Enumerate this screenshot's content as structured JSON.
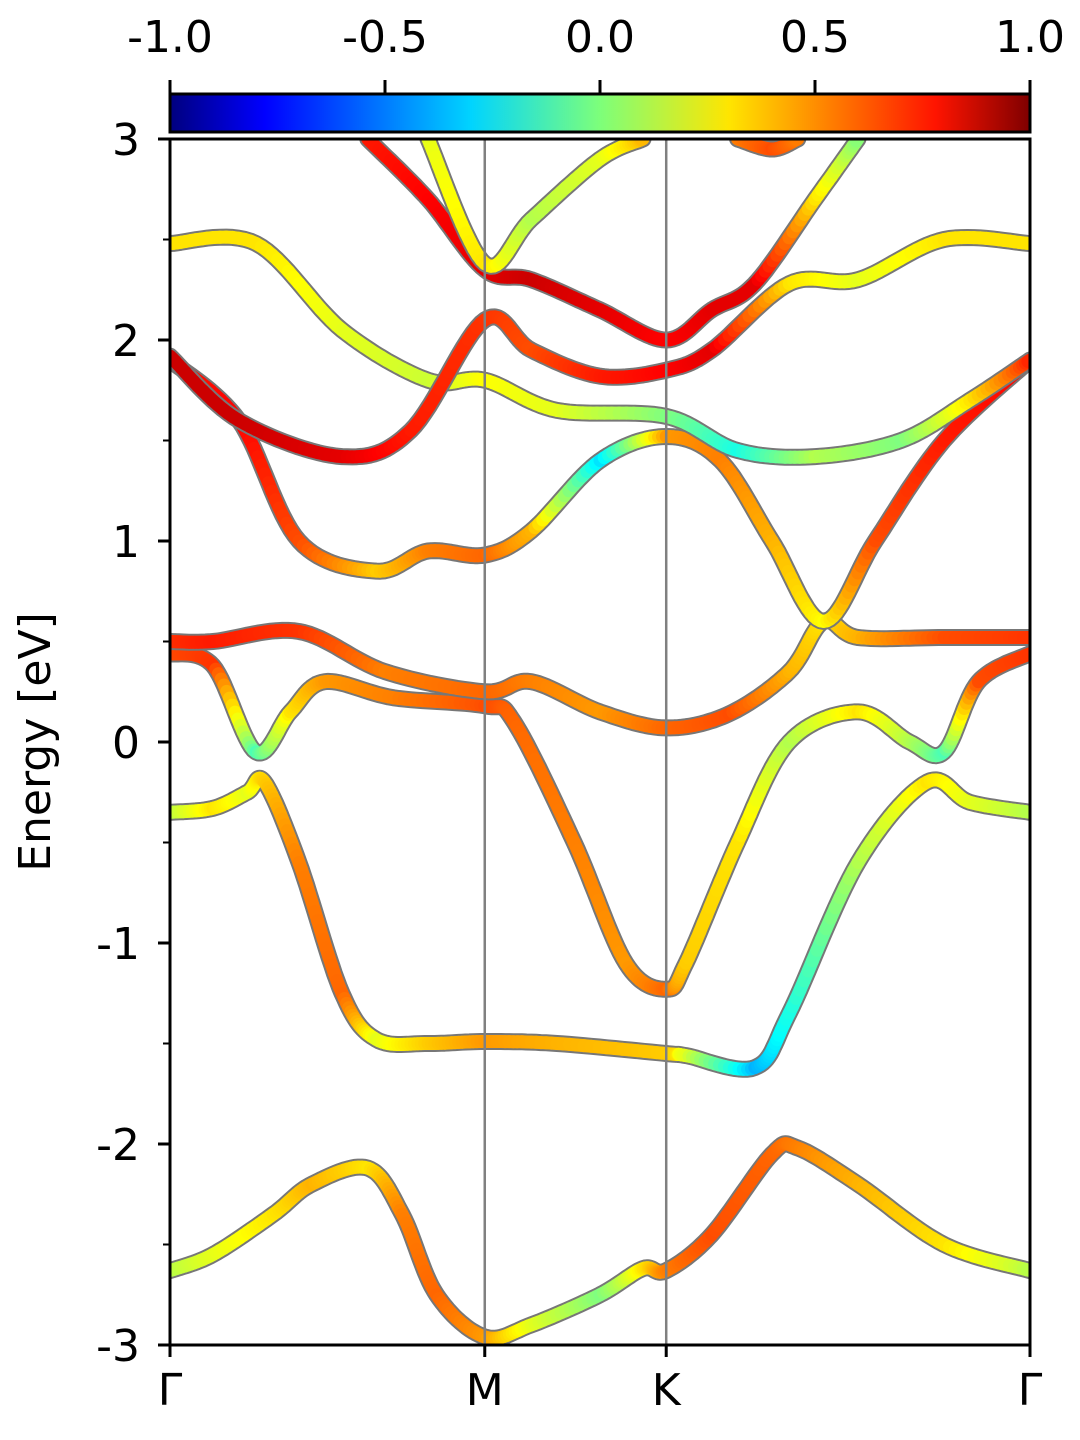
{
  "chart_data": {
    "type": "line",
    "title": "",
    "xlabel": "",
    "ylabel": "Energy [eV]",
    "ylim": [
      -3,
      3
    ],
    "yticks": [
      -3,
      -2,
      -1,
      0,
      1,
      2,
      3
    ],
    "yticks_labels": [
      "-3",
      "-2",
      "-1",
      "0",
      "1",
      "2",
      "3"
    ],
    "kpath_ticks": [
      {
        "label": "Γ",
        "pos": 0.0
      },
      {
        "label": "M",
        "pos": 0.366
      },
      {
        "label": "K",
        "pos": 0.577
      },
      {
        "label": "Γ",
        "pos": 1.0
      }
    ],
    "xlim": [
      0,
      1
    ],
    "colorbar": {
      "colormap": "jet",
      "range": [
        -1.0,
        1.0
      ],
      "tick_values": [
        -1.0,
        -0.5,
        0.0,
        0.5,
        1.0
      ],
      "tick_labels": [
        "-1.0",
        "-0.5",
        "0.0",
        "0.5",
        "1.0"
      ],
      "placement": "top"
    },
    "vertical_lines_at": [
      0.366,
      0.577
    ],
    "series": [
      {
        "points": [
          [
            0,
            -2.63
          ],
          [
            0.05,
            -2.55
          ],
          [
            0.12,
            -2.35
          ],
          [
            0.165,
            -2.2
          ],
          [
            0.23,
            -2.12
          ],
          [
            0.27,
            -2.35
          ],
          [
            0.31,
            -2.75
          ],
          [
            0.366,
            -2.96
          ],
          [
            0.42,
            -2.9
          ],
          [
            0.5,
            -2.75
          ],
          [
            0.55,
            -2.62
          ],
          [
            0.577,
            -2.63
          ],
          [
            0.63,
            -2.45
          ],
          [
            0.7,
            -2.05
          ],
          [
            0.73,
            -2.02
          ],
          [
            0.8,
            -2.2
          ],
          [
            0.9,
            -2.5
          ],
          [
            1.0,
            -2.63
          ]
        ],
        "colors": [
          0.1,
          0.2,
          0.3,
          0.4,
          0.3,
          0.5,
          0.55,
          0.45,
          0.2,
          0.0,
          0.3,
          0.5,
          0.6,
          0.55,
          0.5,
          0.4,
          0.3,
          0.1
        ]
      },
      {
        "points": [
          [
            0,
            -0.35
          ],
          [
            0.05,
            -0.33
          ],
          [
            0.09,
            -0.25
          ],
          [
            0.11,
            -0.2
          ],
          [
            0.15,
            -0.6
          ],
          [
            0.2,
            -1.25
          ],
          [
            0.24,
            -1.48
          ],
          [
            0.3,
            -1.5
          ],
          [
            0.366,
            -1.49
          ],
          [
            0.45,
            -1.5
          ],
          [
            0.577,
            -1.55
          ],
          [
            0.6,
            -1.56
          ],
          [
            0.68,
            -1.62
          ],
          [
            0.72,
            -1.35
          ],
          [
            0.8,
            -0.6
          ],
          [
            0.88,
            -0.2
          ],
          [
            0.93,
            -0.3
          ],
          [
            1.0,
            -0.35
          ]
        ],
        "colors": [
          0.1,
          0.3,
          0.2,
          0.35,
          0.5,
          0.55,
          0.2,
          0.35,
          0.45,
          0.4,
          0.35,
          0.2,
          -0.4,
          -0.2,
          0.1,
          0.3,
          0.2,
          0.1
        ]
      },
      {
        "points": [
          [
            0,
            0.44
          ],
          [
            0.05,
            0.38
          ],
          [
            0.1,
            -0.05
          ],
          [
            0.14,
            0.15
          ],
          [
            0.18,
            0.3
          ],
          [
            0.26,
            0.22
          ],
          [
            0.366,
            0.18
          ],
          [
            0.4,
            0.1
          ],
          [
            0.47,
            -0.5
          ],
          [
            0.53,
            -1.1
          ],
          [
            0.577,
            -1.23
          ],
          [
            0.6,
            -1.1
          ],
          [
            0.66,
            -0.5
          ],
          [
            0.72,
            0.0
          ],
          [
            0.8,
            0.15
          ],
          [
            0.86,
            0.0
          ],
          [
            0.9,
            -0.05
          ],
          [
            0.94,
            0.3
          ],
          [
            1.0,
            0.44
          ]
        ],
        "colors": [
          0.6,
          0.65,
          -0.1,
          0.3,
          0.45,
          0.5,
          0.6,
          0.55,
          0.5,
          0.45,
          0.55,
          0.35,
          0.3,
          0.1,
          0.3,
          0.1,
          -0.1,
          0.6,
          0.65
        ]
      },
      {
        "points": [
          [
            0,
            0.5
          ],
          [
            0.05,
            0.5
          ],
          [
            0.15,
            0.55
          ],
          [
            0.25,
            0.35
          ],
          [
            0.366,
            0.25
          ],
          [
            0.42,
            0.3
          ],
          [
            0.5,
            0.15
          ],
          [
            0.577,
            0.07
          ],
          [
            0.65,
            0.14
          ],
          [
            0.72,
            0.35
          ],
          [
            0.76,
            0.6
          ],
          [
            0.8,
            0.52
          ],
          [
            0.9,
            0.52
          ],
          [
            1.0,
            0.52
          ]
        ],
        "colors": [
          0.65,
          0.7,
          0.65,
          0.5,
          0.55,
          0.5,
          0.45,
          0.55,
          0.6,
          0.4,
          0.3,
          0.4,
          0.6,
          0.65
        ]
      },
      {
        "points": [
          [
            0,
            1.9
          ],
          [
            0.08,
            1.6
          ],
          [
            0.15,
            1.0
          ],
          [
            0.24,
            0.85
          ],
          [
            0.3,
            0.95
          ],
          [
            0.366,
            0.93
          ],
          [
            0.42,
            1.05
          ],
          [
            0.5,
            1.4
          ],
          [
            0.577,
            1.52
          ],
          [
            0.64,
            1.4
          ],
          [
            0.7,
            1.0
          ],
          [
            0.76,
            0.6
          ],
          [
            0.82,
            1.0
          ],
          [
            0.9,
            1.5
          ],
          [
            1.0,
            1.9
          ]
        ],
        "colors": [
          0.7,
          0.75,
          0.6,
          0.35,
          0.5,
          0.55,
          0.4,
          -0.3,
          0.45,
          0.5,
          0.4,
          0.25,
          0.6,
          0.7,
          0.75
        ]
      },
      {
        "points": [
          [
            0,
            2.48
          ],
          [
            0.1,
            2.48
          ],
          [
            0.2,
            2.05
          ],
          [
            0.3,
            1.8
          ],
          [
            0.366,
            1.8
          ],
          [
            0.45,
            1.65
          ],
          [
            0.577,
            1.62
          ],
          [
            0.66,
            1.45
          ],
          [
            0.75,
            1.42
          ],
          [
            0.85,
            1.5
          ],
          [
            0.93,
            1.7
          ],
          [
            1.0,
            1.9
          ]
        ],
        "colors": [
          0.3,
          0.3,
          0.2,
          0.15,
          0.25,
          0.2,
          0.0,
          -0.2,
          0.1,
          0.0,
          0.3,
          0.7
        ]
      },
      {
        "points": [
          [
            0,
            1.92
          ],
          [
            0.08,
            1.6
          ],
          [
            0.2,
            1.42
          ],
          [
            0.28,
            1.55
          ],
          [
            0.366,
            2.1
          ],
          [
            0.42,
            1.95
          ],
          [
            0.5,
            1.82
          ],
          [
            0.577,
            1.85
          ],
          [
            0.63,
            1.95
          ],
          [
            0.72,
            2.28
          ],
          [
            0.8,
            2.3
          ],
          [
            0.9,
            2.5
          ],
          [
            1.0,
            2.48
          ]
        ],
        "colors": [
          0.85,
          0.85,
          0.8,
          0.7,
          0.65,
          0.6,
          0.7,
          0.75,
          0.8,
          0.3,
          0.2,
          0.3,
          0.3
        ]
      },
      {
        "points": [
          [
            0.23,
            3.0
          ],
          [
            0.3,
            2.7
          ],
          [
            0.366,
            2.35
          ],
          [
            0.42,
            2.3
          ],
          [
            0.5,
            2.15
          ],
          [
            0.577,
            2.0
          ],
          [
            0.63,
            2.15
          ],
          [
            0.68,
            2.28
          ],
          [
            0.75,
            2.7
          ],
          [
            0.8,
            3.0
          ]
        ],
        "colors": [
          0.7,
          0.75,
          0.8,
          0.85,
          0.8,
          0.75,
          0.8,
          0.8,
          0.3,
          0.0
        ]
      },
      {
        "points": [
          [
            0.3,
            3.0
          ],
          [
            0.366,
            2.38
          ],
          [
            0.42,
            2.6
          ],
          [
            0.5,
            2.9
          ],
          [
            0.55,
            3.0
          ]
        ],
        "colors": [
          0.2,
          0.3,
          0.1,
          0.2,
          0.4
        ]
      },
      {
        "points": [
          [
            0.66,
            3.0
          ],
          [
            0.7,
            2.95
          ],
          [
            0.73,
            3.0
          ]
        ],
        "colors": [
          0.5,
          0.6,
          0.5
        ]
      }
    ]
  }
}
